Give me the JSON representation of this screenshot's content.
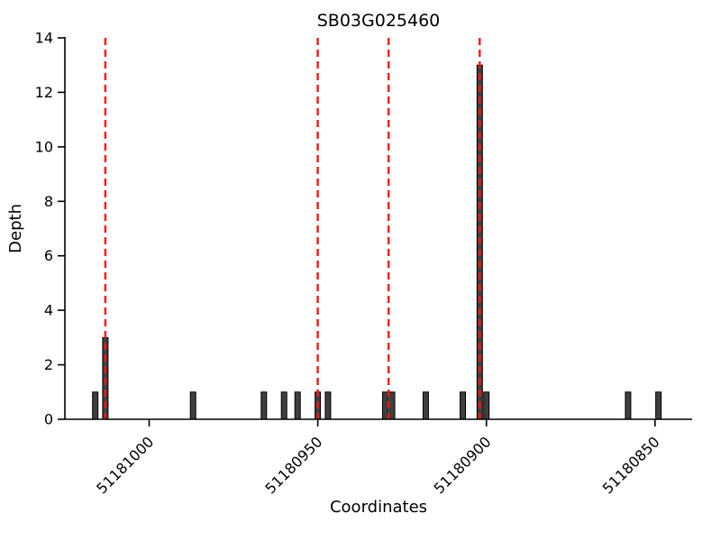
{
  "chart_data": {
    "type": "bar",
    "title": "SB03G025460",
    "xlabel": "Coordinates",
    "ylabel": "Depth",
    "ylim": [
      0,
      14
    ],
    "yticks": [
      0,
      2,
      4,
      6,
      8,
      10,
      12,
      14
    ],
    "x_axis": {
      "left_value": 51181025,
      "right_value": 51180839,
      "direction": "decreasing"
    },
    "xticks": [
      51181000,
      51180950,
      51180900,
      51180850
    ],
    "bars": [
      {
        "x": 51181016,
        "depth": 1
      },
      {
        "x": 51181013,
        "depth": 3
      },
      {
        "x": 51180987,
        "depth": 1
      },
      {
        "x": 51180966,
        "depth": 1
      },
      {
        "x": 51180960,
        "depth": 1
      },
      {
        "x": 51180956,
        "depth": 1
      },
      {
        "x": 51180950,
        "depth": 1
      },
      {
        "x": 51180947,
        "depth": 1
      },
      {
        "x": 51180930,
        "depth": 1
      },
      {
        "x": 51180928,
        "depth": 1
      },
      {
        "x": 51180918,
        "depth": 1
      },
      {
        "x": 51180907,
        "depth": 1
      },
      {
        "x": 51180902,
        "depth": 13
      },
      {
        "x": 51180900,
        "depth": 1
      },
      {
        "x": 51180858,
        "depth": 1
      },
      {
        "x": 51180849,
        "depth": 1
      }
    ],
    "vlines": {
      "style": "dashed",
      "color": "#ff1414",
      "positions": [
        51181013,
        51180950,
        51180929,
        51180902
      ]
    },
    "bar_color": "#3f3f3f",
    "bar_edge_color": "#000000",
    "axis_color": "#000000",
    "legend": "none",
    "grid": "off"
  }
}
